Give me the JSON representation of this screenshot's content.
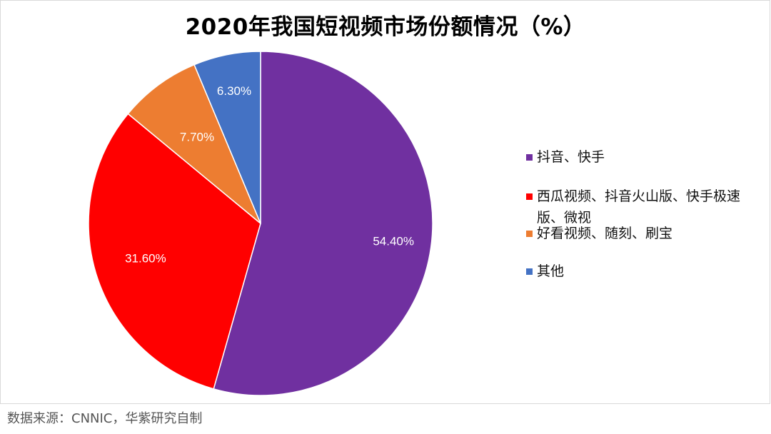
{
  "title": "2020年我国短视频市场份额情况（%）",
  "source": "数据来源：CNNIC，华紫研究自制",
  "chart_data": {
    "type": "pie",
    "title": "2020年我国短视频市场份额情况（%）",
    "categories": [
      "抖音、快手",
      "西瓜视频、抖音火山版、快手极速版、微视",
      "好看视频、随刻、刷宝",
      "其他"
    ],
    "values": [
      54.4,
      31.6,
      7.7,
      6.3
    ],
    "data_labels": [
      "54.40%",
      "31.60%",
      "7.70%",
      "6.30%"
    ],
    "colors": [
      "#7030a0",
      "#ff0000",
      "#ed7d31",
      "#4472c4"
    ],
    "legend_position": "right",
    "start": "top, clockwise"
  }
}
